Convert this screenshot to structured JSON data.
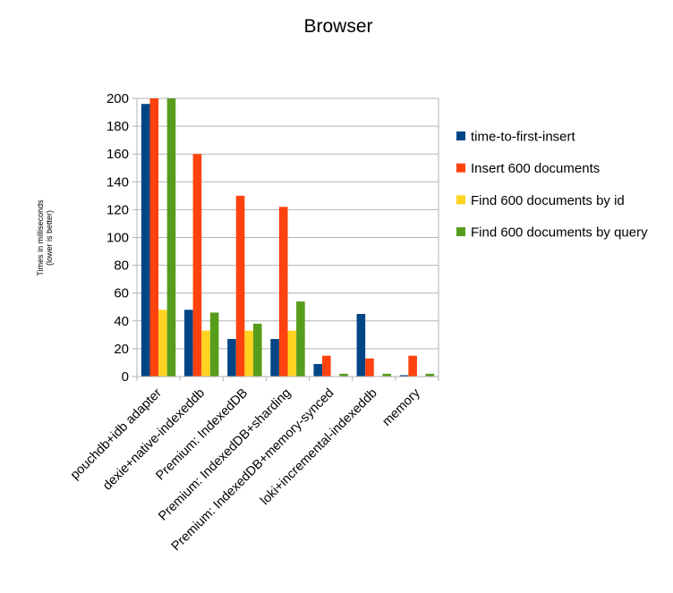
{
  "chart_data": {
    "type": "bar",
    "title": "Browser",
    "ylabel_line1": "Times in milliseconds",
    "ylabel_line2": "(lower is better)",
    "ylim": [
      0,
      200
    ],
    "yticks": [
      0,
      20,
      40,
      60,
      80,
      100,
      120,
      140,
      160,
      180,
      200
    ],
    "grid": true,
    "legend_position": "right",
    "categories": [
      "pouchdb+idb adapter",
      "dexie+native-indexeddb",
      "Premium: IndexedDB",
      "Premium: IndexedDB+sharding",
      "Premium: IndexedDB+memory-synced",
      "loki+incremental-indexeddb",
      "memory"
    ],
    "series": [
      {
        "name": "time-to-first-insert",
        "color": "#004586",
        "values": [
          196,
          48,
          27,
          27,
          9,
          45,
          1
        ]
      },
      {
        "name": "Insert 600 documents",
        "color": "#ff420e",
        "values": [
          200,
          160,
          130,
          122,
          15,
          13,
          15
        ]
      },
      {
        "name": "Find 600 documents by id",
        "color": "#ffd320",
        "values": [
          48,
          33,
          33,
          33,
          0,
          0,
          0
        ]
      },
      {
        "name": "Find 600 documents by query",
        "color": "#579d1c",
        "values": [
          200,
          46,
          38,
          54,
          2,
          2,
          2
        ]
      }
    ]
  }
}
